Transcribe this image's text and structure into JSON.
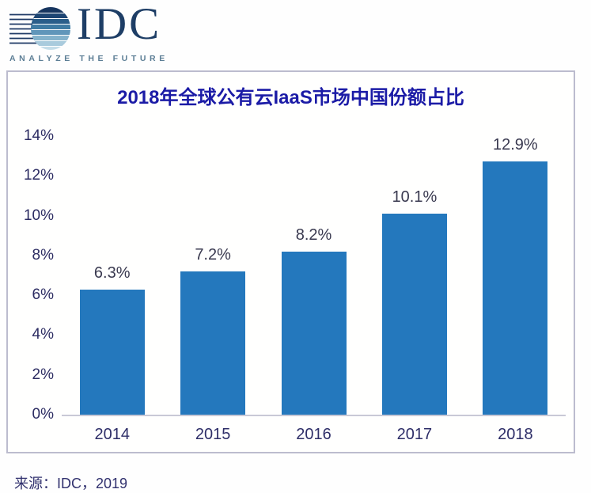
{
  "logo": {
    "brand": "IDC",
    "tagline": "ANALYZE THE FUTURE"
  },
  "chart_data": {
    "type": "bar",
    "title": "2018年全球公有云IaaS市场中国份额占比",
    "categories": [
      "2014",
      "2015",
      "2016",
      "2017",
      "2018"
    ],
    "values": [
      6.3,
      7.2,
      8.2,
      10.1,
      12.9
    ],
    "value_labels": [
      "6.3%",
      "7.2%",
      "8.2%",
      "10.1%",
      "12.9%"
    ],
    "xlabel": "",
    "ylabel": "",
    "ylim": [
      0,
      14
    ],
    "ytick_step": 2,
    "ytick_labels": [
      "0%",
      "2%",
      "4%",
      "6%",
      "8%",
      "10%",
      "12%",
      "14%"
    ],
    "bar_color": "#2478BD",
    "grid": false,
    "legend": "none"
  },
  "source": {
    "text": "来源：IDC，2019"
  },
  "colors": {
    "title_blue": "#1b1ba6",
    "axis_text": "#2c2c62",
    "brand_navy": "#1e3e66",
    "tagline_gray_blue": "#5c7e95",
    "panel_border": "#bcbcce",
    "baseline": "#c9c9d6"
  }
}
